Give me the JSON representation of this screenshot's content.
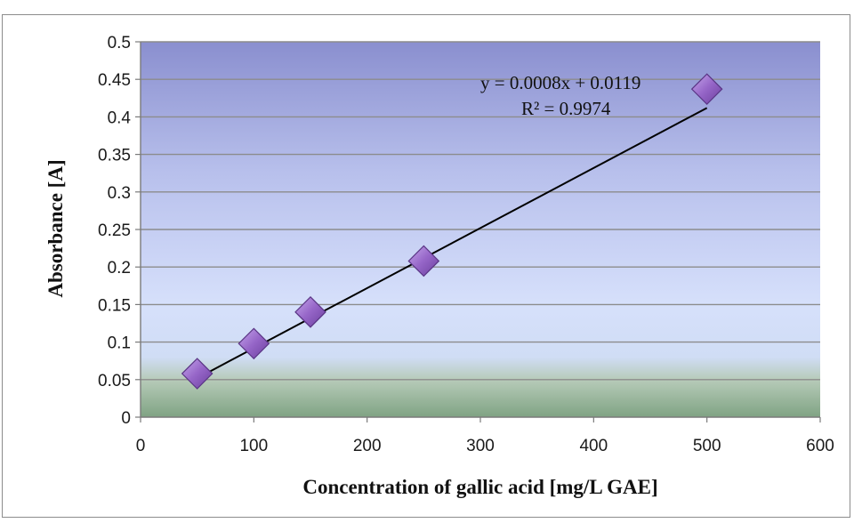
{
  "chart_data": {
    "type": "scatter",
    "title": "",
    "xlabel": "Concentration of gallic acid [mg/L GAE]",
    "ylabel": "Absorbance [A]",
    "xlim": [
      0,
      600
    ],
    "ylim": [
      0,
      0.5
    ],
    "x_ticks": [
      "0",
      "100",
      "200",
      "300",
      "400",
      "500",
      "600"
    ],
    "y_ticks": [
      "0",
      "0.05",
      "0.1",
      "0.15",
      "0.2",
      "0.25",
      "0.3",
      "0.35",
      "0.4",
      "0.45",
      "0.5"
    ],
    "grid": true,
    "legend": "none",
    "series": [
      {
        "x": [
          50,
          100,
          150,
          250,
          500
        ],
        "y": [
          0.058,
          0.098,
          0.14,
          0.208,
          0.437
        ],
        "color": "#9b6fc8"
      }
    ],
    "trendline": {
      "slope": 0.0008,
      "intercept": 0.0119,
      "x_range": [
        50,
        500
      ],
      "equation_label": "y = 0.0008x + 0.0119",
      "r2_label": "R² = 0.9974"
    }
  }
}
